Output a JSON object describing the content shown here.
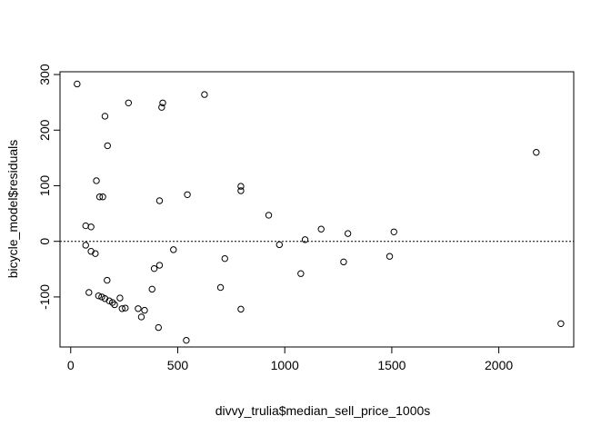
{
  "chart_data": {
    "type": "scatter",
    "title": "",
    "xlabel": "divvy_trulia$median_sell_price_1000s",
    "ylabel": "bicycle_model$residuals",
    "xlim": [
      -50,
      2350
    ],
    "ylim": [
      -190,
      305
    ],
    "x_ticks": [
      0,
      500,
      1000,
      1500,
      2000
    ],
    "y_ticks": [
      -100,
      0,
      100,
      200,
      300
    ],
    "reference_line": {
      "y": 0,
      "style": "dotted"
    },
    "grid": false,
    "legend": "none",
    "points": [
      [
        30,
        283
      ],
      [
        70,
        28
      ],
      [
        70,
        -7
      ],
      [
        85,
        -92
      ],
      [
        95,
        26
      ],
      [
        95,
        -18
      ],
      [
        115,
        -22
      ],
      [
        120,
        109
      ],
      [
        130,
        -98
      ],
      [
        135,
        80
      ],
      [
        145,
        -100
      ],
      [
        150,
        80
      ],
      [
        160,
        -103
      ],
      [
        160,
        225
      ],
      [
        170,
        -70
      ],
      [
        172,
        172
      ],
      [
        180,
        -107
      ],
      [
        195,
        -110
      ],
      [
        205,
        -114
      ],
      [
        230,
        -102
      ],
      [
        240,
        -121
      ],
      [
        255,
        -120
      ],
      [
        270,
        249
      ],
      [
        315,
        -121
      ],
      [
        330,
        -136
      ],
      [
        345,
        -124
      ],
      [
        380,
        -86
      ],
      [
        390,
        -49
      ],
      [
        410,
        -155
      ],
      [
        415,
        73
      ],
      [
        415,
        -43
      ],
      [
        425,
        241
      ],
      [
        430,
        249
      ],
      [
        480,
        -15
      ],
      [
        540,
        -178
      ],
      [
        545,
        84
      ],
      [
        625,
        264
      ],
      [
        700,
        -83
      ],
      [
        720,
        -31
      ],
      [
        795,
        99
      ],
      [
        795,
        91
      ],
      [
        795,
        -122
      ],
      [
        925,
        47
      ],
      [
        975,
        -6
      ],
      [
        1075,
        -58
      ],
      [
        1095,
        3
      ],
      [
        1170,
        22
      ],
      [
        1275,
        -37
      ],
      [
        1295,
        14
      ],
      [
        1490,
        -27
      ],
      [
        1510,
        17
      ],
      [
        2175,
        160
      ],
      [
        2290,
        -148
      ]
    ]
  }
}
